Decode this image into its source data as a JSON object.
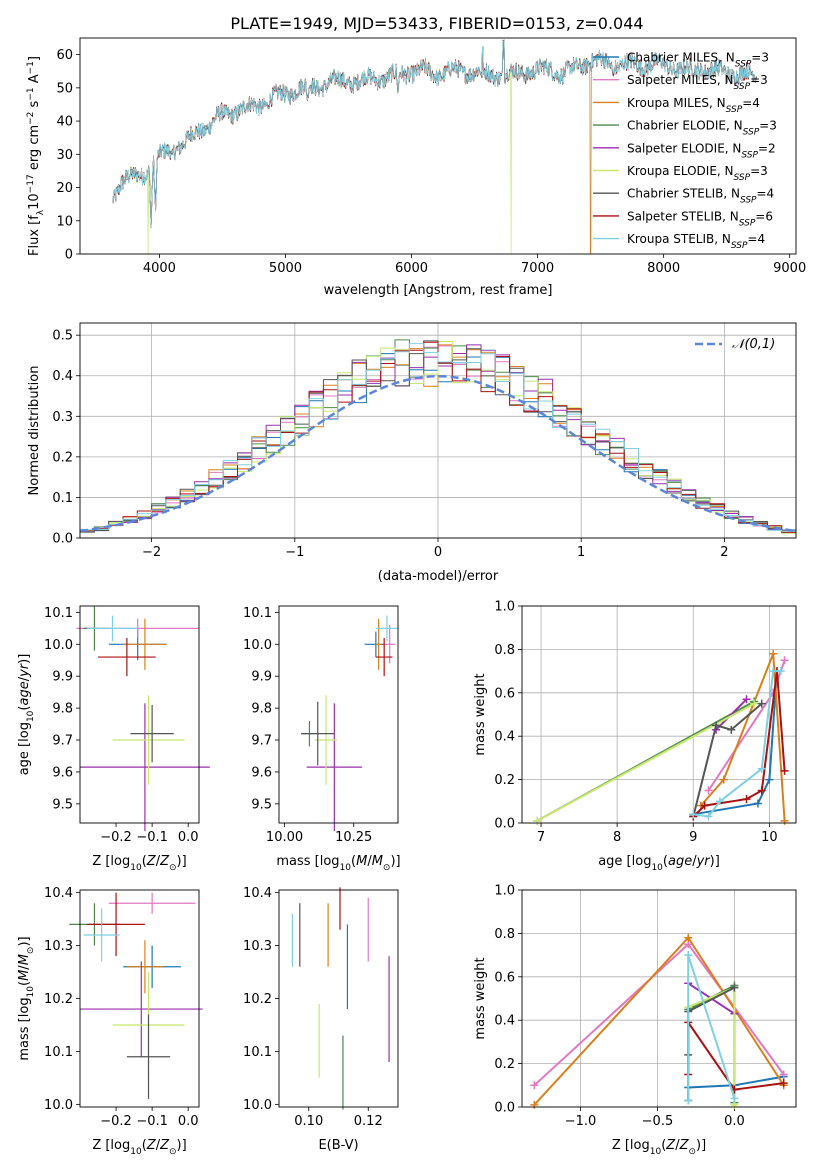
{
  "figure_title": "PLATE=1949, MJD=53433, FIBERID=0153, z=0.044",
  "models": [
    {
      "label": "Chabrier MILES, N",
      "sub": "SSP",
      "n": "=3",
      "color": "#1f77b4"
    },
    {
      "label": "Salpeter MILES, N",
      "sub": "SSP",
      "n": "=3",
      "color": "#e377c2"
    },
    {
      "label": "Kroupa MILES, N",
      "sub": "SSP",
      "n": "=4",
      "color": "#d9801c"
    },
    {
      "label": "Chabrier ELODIE, N",
      "sub": "SSP",
      "n": "=3",
      "color": "#4c8a4c"
    },
    {
      "label": "Salpeter ELODIE, N",
      "sub": "SSP",
      "n": "=2",
      "color": "#9b2fae"
    },
    {
      "label": "Kroupa ELODIE, N",
      "sub": "SSP",
      "n": "=3",
      "color": "#c7e86c"
    },
    {
      "label": "Chabrier STELIB, N",
      "sub": "SSP",
      "n": "=4",
      "color": "#555555"
    },
    {
      "label": "Salpeter STELIB, N",
      "sub": "SSP",
      "n": "=6",
      "color": "#aa1111"
    },
    {
      "label": "Kroupa STELIB, N",
      "sub": "SSP",
      "n": "=4",
      "color": "#7fd0e0"
    }
  ],
  "chart_data": [
    {
      "id": "spectrum",
      "type": "line",
      "xlabel": "wavelength [Angstrom, rest frame]",
      "ylabel": "Flux [f",
      "ylabel_parts": [
        "Flux [f",
        "λ",
        "10",
        "−17",
        " erg cm",
        "−2",
        " s",
        "−1",
        " A",
        "−1",
        "]"
      ],
      "xlim": [
        3370,
        9050
      ],
      "ylim": [
        0,
        65
      ],
      "xticks": [
        4000,
        5000,
        6000,
        7000,
        8000,
        9000
      ],
      "yticks": [
        0,
        10,
        20,
        30,
        40,
        50,
        60
      ],
      "x_range": [
        3630,
        8740
      ],
      "shape": [
        [
          3630,
          17
        ],
        [
          3700,
          22
        ],
        [
          3800,
          23
        ],
        [
          3900,
          25
        ],
        [
          4000,
          29
        ],
        [
          4100,
          32
        ],
        [
          4200,
          33
        ],
        [
          4300,
          37
        ],
        [
          4400,
          39
        ],
        [
          4500,
          42
        ],
        [
          4600,
          43
        ],
        [
          4700,
          44
        ],
        [
          4800,
          45
        ],
        [
          4900,
          47
        ],
        [
          5000,
          48
        ],
        [
          5100,
          50
        ],
        [
          5200,
          50
        ],
        [
          5300,
          51
        ],
        [
          5400,
          52
        ],
        [
          5500,
          52
        ],
        [
          5600,
          52
        ],
        [
          5700,
          53
        ],
        [
          5800,
          53
        ],
        [
          5900,
          54
        ],
        [
          6000,
          55
        ],
        [
          6100,
          55
        ],
        [
          6200,
          54
        ],
        [
          6300,
          55
        ],
        [
          6400,
          55
        ],
        [
          6500,
          55
        ],
        [
          6600,
          54
        ],
        [
          6700,
          54
        ],
        [
          6800,
          54
        ],
        [
          6900,
          55
        ],
        [
          7000,
          55
        ],
        [
          7100,
          56
        ],
        [
          7200,
          54
        ],
        [
          7300,
          56
        ],
        [
          7400,
          58
        ],
        [
          7500,
          58
        ],
        [
          7600,
          57
        ],
        [
          7700,
          57
        ],
        [
          7800,
          57
        ],
        [
          7900,
          57
        ],
        [
          8000,
          57
        ],
        [
          8100,
          56
        ],
        [
          8200,
          55
        ],
        [
          8300,
          56
        ],
        [
          8400,
          55
        ],
        [
          8500,
          55
        ],
        [
          8600,
          54
        ],
        [
          8740,
          54
        ]
      ],
      "dips": [
        [
          3934,
          8
        ],
        [
          3969,
          12
        ],
        [
          4101,
          30
        ],
        [
          4861,
          44
        ],
        [
          5175,
          46
        ],
        [
          5892,
          48
        ],
        [
          6563,
          51
        ],
        [
          7600,
          54
        ]
      ],
      "spikes": [
        [
          6563,
          62
        ],
        [
          6730,
          64
        ]
      ],
      "dropouts": [
        {
          "series": 5,
          "x": 3910
        },
        {
          "series": 5,
          "x": 6790
        },
        {
          "series": 2,
          "x": 7420
        }
      ]
    },
    {
      "id": "residuals",
      "type": "histogram",
      "xlabel": "(data-model)/error",
      "ylabel": "Normed distribution",
      "xlim": [
        -2.5,
        2.5
      ],
      "ylim": [
        0,
        0.53
      ],
      "xticks": [
        -2,
        -1,
        0,
        1,
        2
      ],
      "yticks": [
        0.0,
        0.1,
        0.2,
        0.3,
        0.4,
        0.5
      ],
      "bin_width": 0.1,
      "reference": {
        "label": "𝒩(0,1)",
        "mean": 0,
        "sd": 1,
        "color": "#5b86d9"
      }
    },
    {
      "id": "age_vs_Z",
      "type": "errorbar",
      "xlabel": "Z [log",
      "ylabel": "age  [log",
      "xlim": [
        -0.3,
        0.03
      ],
      "ylim": [
        9.44,
        10.12
      ],
      "xticks": [
        -0.2,
        -0.1,
        0.0
      ],
      "yticks": [
        9.5,
        9.6,
        9.7,
        9.8,
        9.9,
        10.0,
        10.1
      ],
      "points": [
        {
          "s": 0,
          "x": -0.14,
          "xe": 0.08,
          "y": 10.0,
          "ye": 0.05
        },
        {
          "s": 1,
          "x": -0.14,
          "xe": 0.17,
          "y": 10.05,
          "ye": 0.03
        },
        {
          "s": 2,
          "x": -0.12,
          "xe": 0.06,
          "y": 10.0,
          "ye": 0.08
        },
        {
          "s": 3,
          "x": -0.26,
          "xe": 0.03,
          "y": 10.05,
          "ye": 0.07
        },
        {
          "s": 4,
          "x": -0.12,
          "xe": 0.18,
          "y": 9.615,
          "ye": 0.2
        },
        {
          "s": 5,
          "x": -0.11,
          "xe": 0.1,
          "y": 9.7,
          "ye": 0.14
        },
        {
          "s": 6,
          "x": -0.1,
          "xe": 0.06,
          "y": 9.72,
          "ye": 0.09
        },
        {
          "s": 7,
          "x": -0.17,
          "xe": 0.08,
          "y": 9.96,
          "ye": 0.06
        },
        {
          "s": 8,
          "x": -0.21,
          "xe": 0.07,
          "y": 10.05,
          "ye": 0.04
        }
      ]
    },
    {
      "id": "age_vs_mass",
      "type": "errorbar",
      "xlabel": "mass [log",
      "ylabel": "",
      "xlim": [
        9.98,
        10.41
      ],
      "ylim": [
        9.44,
        10.12
      ],
      "xticks": [
        10.0,
        10.25
      ],
      "yticks": [
        9.5,
        9.6,
        9.7,
        9.8,
        9.9,
        10.0,
        10.1
      ],
      "points": [
        {
          "s": 0,
          "x": 10.33,
          "xe": 0.04,
          "y": 10.0,
          "ye": 0.04
        },
        {
          "s": 1,
          "x": 10.38,
          "xe": 0.02,
          "y": 10.0,
          "ye": 0.06
        },
        {
          "s": 2,
          "x": 10.34,
          "xe": 0.01,
          "y": 10.0,
          "ye": 0.08
        },
        {
          "s": 3,
          "x": 10.09,
          "xe": 0.03,
          "y": 9.72,
          "ye": 0.04
        },
        {
          "s": 4,
          "x": 10.18,
          "xe": 0.1,
          "y": 9.615,
          "ye": 0.2
        },
        {
          "s": 5,
          "x": 10.15,
          "xe": 0.04,
          "y": 9.7,
          "ye": 0.14
        },
        {
          "s": 6,
          "x": 10.12,
          "xe": 0.06,
          "y": 9.72,
          "ye": 0.1
        },
        {
          "s": 7,
          "x": 10.36,
          "xe": 0.03,
          "y": 9.96,
          "ye": 0.06
        },
        {
          "s": 8,
          "x": 10.37,
          "xe": 0.04,
          "y": 10.05,
          "ye": 0.04
        }
      ]
    },
    {
      "id": "mass_weight_vs_age",
      "type": "line",
      "xlabel": "age  [log",
      "ylabel": "mass weight",
      "xlim": [
        6.75,
        10.35
      ],
      "ylim": [
        0,
        1.0
      ],
      "xticks": [
        7,
        8,
        9,
        10
      ],
      "yticks": [
        0.0,
        0.2,
        0.4,
        0.6,
        0.8,
        1.0
      ],
      "series": [
        {
          "s": 0,
          "x": [
            9.0,
            9.85,
            10.0,
            10.1
          ],
          "y": [
            0.04,
            0.09,
            0.2,
            0.7
          ]
        },
        {
          "s": 1,
          "x": [
            9.2,
            10.05,
            10.2
          ],
          "y": [
            0.15,
            0.6,
            0.75
          ]
        },
        {
          "s": 2,
          "x": [
            9.1,
            9.4,
            10.05,
            10.2
          ],
          "y": [
            0.08,
            0.2,
            0.78,
            0.01
          ]
        },
        {
          "s": 3,
          "x": [
            6.95,
            9.8
          ],
          "y": [
            0.01,
            0.56
          ]
        },
        {
          "s": 4,
          "x": [
            9.3,
            9.7
          ],
          "y": [
            0.43,
            0.57
          ]
        },
        {
          "s": 5,
          "x": [
            6.95,
            9.8
          ],
          "y": [
            0.01,
            0.55
          ]
        },
        {
          "s": 6,
          "x": [
            9.0,
            9.3,
            9.5,
            9.9
          ],
          "y": [
            0.03,
            0.45,
            0.43,
            0.55
          ]
        },
        {
          "s": 7,
          "x": [
            9.0,
            9.15,
            9.7,
            9.9,
            10.1,
            10.2
          ],
          "y": [
            0.03,
            0.08,
            0.11,
            0.15,
            0.7,
            0.24
          ]
        },
        {
          "s": 8,
          "x": [
            9.0,
            9.2,
            9.35,
            9.9,
            10.05,
            10.15
          ],
          "y": [
            0.04,
            0.03,
            0.1,
            0.25,
            0.7,
            0.7
          ]
        }
      ]
    },
    {
      "id": "mass_vs_Z",
      "type": "errorbar",
      "xlabel": "Z [log",
      "ylabel": "mass [log",
      "xlim": [
        -0.3,
        0.03
      ],
      "ylim": [
        9.995,
        10.405
      ],
      "xticks": [
        -0.2,
        -0.1,
        0.0
      ],
      "yticks": [
        10.0,
        10.1,
        10.2,
        10.3,
        10.4
      ],
      "points": [
        {
          "s": 0,
          "x": -0.1,
          "xe": 0.08,
          "y": 10.26,
          "ye": 0.04
        },
        {
          "s": 1,
          "x": -0.1,
          "xe": 0.12,
          "y": 10.38,
          "ye": 0.02
        },
        {
          "s": 2,
          "x": -0.12,
          "xe": 0.05,
          "y": 10.26,
          "ye": 0.05
        },
        {
          "s": 3,
          "x": -0.26,
          "xe": 0.07,
          "y": 10.34,
          "ye": 0.04
        },
        {
          "s": 4,
          "x": -0.13,
          "xe": 0.17,
          "y": 10.18,
          "ye": 0.09
        },
        {
          "s": 5,
          "x": -0.11,
          "xe": 0.1,
          "y": 10.15,
          "ye": 0.1
        },
        {
          "s": 6,
          "x": -0.11,
          "xe": 0.06,
          "y": 10.09,
          "ye": 0.08
        },
        {
          "s": 7,
          "x": -0.2,
          "xe": 0.08,
          "y": 10.34,
          "ye": 0.06
        },
        {
          "s": 8,
          "x": -0.24,
          "xe": 0.05,
          "y": 10.32,
          "ye": 0.05
        }
      ]
    },
    {
      "id": "mass_vs_EBV",
      "type": "errorbar",
      "xlabel": "E(B-V)",
      "ylabel": "",
      "xlim": [
        0.09,
        0.13
      ],
      "ylim": [
        9.995,
        10.405
      ],
      "xticks": [
        0.1,
        0.12
      ],
      "yticks": [
        10.0,
        10.1,
        10.2,
        10.3,
        10.4
      ],
      "points": [
        {
          "s": 0,
          "x": 0.113,
          "y": 10.26,
          "ye": 0.08
        },
        {
          "s": 1,
          "x": 0.12,
          "y": 10.33,
          "ye": 0.06
        },
        {
          "s": 2,
          "x": 0.1065,
          "y": 10.32,
          "ye": 0.06
        },
        {
          "s": 3,
          "x": 0.1115,
          "y": 10.06,
          "ye": 0.07
        },
        {
          "s": 4,
          "x": 0.127,
          "y": 10.18,
          "ye": 0.1
        },
        {
          "s": 5,
          "x": 0.1035,
          "y": 10.12,
          "ye": 0.07
        },
        {
          "s": 6,
          "x": 0.097,
          "y": 10.32,
          "ye": 0.06
        },
        {
          "s": 7,
          "x": 0.1105,
          "y": 10.37,
          "ye": 0.04
        },
        {
          "s": 8,
          "x": 0.0945,
          "y": 10.31,
          "ye": 0.05
        }
      ]
    },
    {
      "id": "mass_weight_vs_Z",
      "type": "line",
      "xlabel": "Z [log",
      "ylabel": "mass weight",
      "xlim": [
        -1.38,
        0.4
      ],
      "ylim": [
        0,
        1.0
      ],
      "xticks": [
        -1.0,
        -0.5,
        0.0
      ],
      "yticks": [
        0.0,
        0.2,
        0.4,
        0.6,
        0.8,
        1.0
      ],
      "series": [
        {
          "s": 0,
          "x": [
            -0.3,
            0.0,
            0.32
          ],
          "y": [
            0.09,
            0.1,
            0.14
          ]
        },
        {
          "s": 1,
          "x": [
            -1.3,
            -0.3,
            0.32
          ],
          "y": [
            0.1,
            0.75,
            0.15
          ]
        },
        {
          "s": 2,
          "x": [
            -1.3,
            -0.3,
            0.32
          ],
          "y": [
            0.01,
            0.78,
            0.1
          ]
        },
        {
          "s": 3,
          "x": [
            -0.3,
            0.0,
            0.0
          ],
          "y": [
            0.45,
            0.56,
            0.02
          ]
        },
        {
          "s": 4,
          "x": [
            -0.3,
            0.0
          ],
          "y": [
            0.57,
            0.43
          ]
        },
        {
          "s": 5,
          "x": [
            -0.3,
            0.0,
            0.0
          ],
          "y": [
            0.46,
            0.55,
            0.01
          ]
        },
        {
          "s": 6,
          "x": [
            -0.3,
            -0.3,
            -0.3,
            0.0
          ],
          "y": [
            0.03,
            0.24,
            0.44,
            0.55
          ]
        },
        {
          "s": 7,
          "x": [
            -0.3,
            -0.3,
            0.0,
            0.32
          ],
          "y": [
            0.15,
            0.39,
            0.08,
            0.11
          ]
        },
        {
          "s": 8,
          "x": [
            -0.3,
            -0.3,
            0.0
          ],
          "y": [
            0.03,
            0.7,
            0.04
          ]
        }
      ]
    }
  ]
}
